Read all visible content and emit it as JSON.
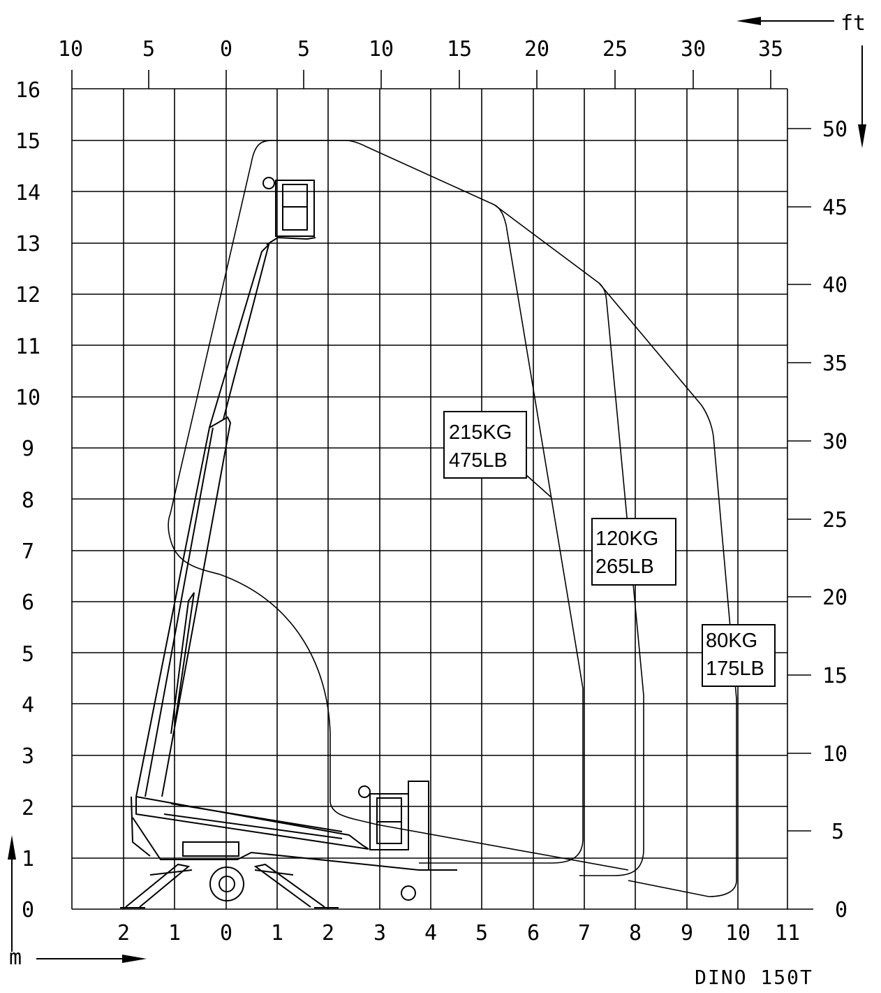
{
  "title": "DINO 150T",
  "units": {
    "meters_label": "m",
    "feet_label": "ft"
  },
  "axes": {
    "left_y_m": [
      "0",
      "1",
      "2",
      "3",
      "4",
      "5",
      "6",
      "7",
      "8",
      "9",
      "10",
      "11",
      "12",
      "13",
      "14",
      "15",
      "16"
    ],
    "right_y_ft": [
      "0",
      "5",
      "10",
      "15",
      "20",
      "25",
      "30",
      "35",
      "40",
      "45",
      "50"
    ],
    "bottom_x_m": [
      "2",
      "1",
      "0",
      "1",
      "2",
      "3",
      "4",
      "5",
      "6",
      "7",
      "8",
      "9",
      "10",
      "11"
    ],
    "top_x_ft": [
      "10",
      "5",
      "0",
      "5",
      "10",
      "15",
      "20",
      "25",
      "30",
      "35"
    ]
  },
  "loads": [
    {
      "kg": "215KG",
      "lb": "475LB"
    },
    {
      "kg": "120KG",
      "lb": "265LB"
    },
    {
      "kg": "80KG",
      "lb": "175LB"
    }
  ],
  "chart_data": {
    "type": "working-range-diagram",
    "title": "DINO 150T",
    "x_unit": "m",
    "y_unit": "m",
    "xlim": [
      -3,
      11
    ],
    "ylim": [
      0,
      16
    ],
    "max_height_m": 15,
    "envelopes": [
      {
        "load": "215KG / 475LB",
        "max_outreach_m": 7.0
      },
      {
        "load": "120KG / 265LB",
        "max_outreach_m": 8.2
      },
      {
        "load": "80KG / 175LB",
        "max_outreach_m": 10.0
      }
    ]
  }
}
